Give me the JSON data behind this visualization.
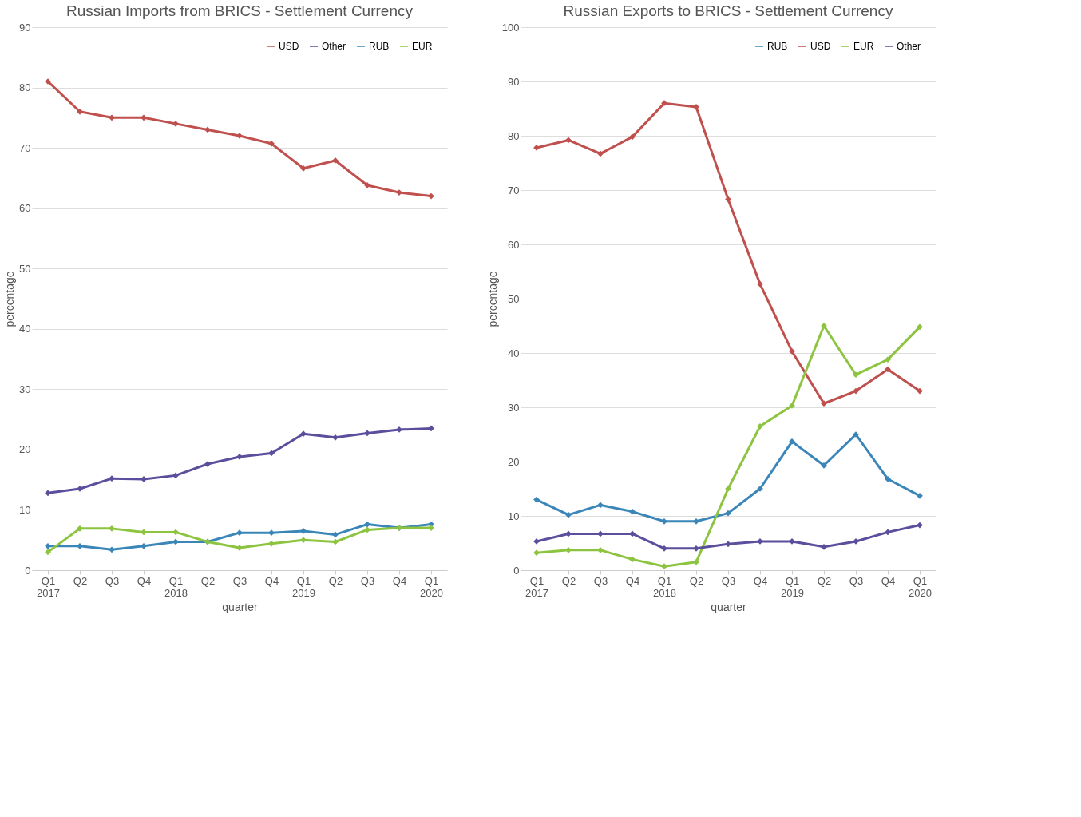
{
  "chart_data": [
    {
      "type": "line",
      "title": "Russian Imports from BRICS - Settlement Currency",
      "xlabel": "quarter",
      "ylabel": "percentage",
      "categories": [
        "Q1 2017",
        "Q2",
        "Q3",
        "Q4",
        "Q1 2018",
        "Q2",
        "Q3",
        "Q4",
        "Q1 2019",
        "Q2",
        "Q3",
        "Q4",
        "Q1 2020"
      ],
      "series": [
        {
          "name": "USD",
          "color": "#c0504d",
          "values": [
            81,
            76,
            75,
            75,
            74,
            73,
            72,
            70.7,
            66.6,
            67.9,
            63.8,
            62.6,
            62
          ]
        },
        {
          "name": "Other",
          "color": "#5b4e9c",
          "values": [
            12.8,
            13.5,
            15.2,
            15.1,
            15.7,
            17.6,
            18.8,
            19.4,
            22.6,
            22,
            22.7,
            23.3,
            23.5
          ]
        },
        {
          "name": "RUB",
          "color": "#3a86b8",
          "values": [
            4,
            4,
            3.4,
            4,
            4.7,
            4.7,
            6.2,
            6.2,
            6.5,
            5.9,
            7.6,
            7,
            7.6
          ]
        },
        {
          "name": "EUR",
          "color": "#8cc43f",
          "values": [
            3,
            6.9,
            6.9,
            6.3,
            6.3,
            4.7,
            3.7,
            4.4,
            5,
            4.7,
            6.7,
            7,
            7
          ]
        }
      ],
      "ylim": [
        0,
        90
      ],
      "yticks": [
        0,
        10,
        20,
        30,
        40,
        50,
        60,
        70,
        80,
        90
      ],
      "grid": "y",
      "legend": "top right",
      "marker": "diamond",
      "line_style": "solid"
    },
    {
      "type": "line",
      "title": "Russian Exports to BRICS - Settlement Currency",
      "xlabel": "quarter",
      "ylabel": "percentage",
      "categories": [
        "Q1 2017",
        "Q2",
        "Q3",
        "Q4",
        "Q1 2018",
        "Q2",
        "Q3",
        "Q4",
        "Q1 2019",
        "Q2",
        "Q3",
        "Q4",
        "Q1 2020"
      ],
      "series": [
        {
          "name": "RUB",
          "color": "#3a86b8",
          "values": [
            13,
            10.2,
            12,
            10.8,
            9,
            9,
            10.5,
            15,
            23.7,
            19.3,
            25,
            16.8,
            13.7
          ]
        },
        {
          "name": "USD",
          "color": "#c0504d",
          "values": [
            77.8,
            79.2,
            76.7,
            79.8,
            86,
            85.3,
            68.3,
            52.7,
            40.3,
            30.7,
            33,
            37,
            33
          ]
        },
        {
          "name": "EUR",
          "color": "#8cc43f",
          "values": [
            3.2,
            3.7,
            3.7,
            2,
            0.7,
            1.5,
            15,
            26.5,
            30.3,
            45,
            36,
            38.8,
            44.8
          ]
        },
        {
          "name": "Other",
          "color": "#5b4e9c",
          "values": [
            5.3,
            6.7,
            6.7,
            6.7,
            4,
            4,
            4.8,
            5.3,
            5.3,
            4.3,
            5.3,
            7,
            8.3
          ]
        }
      ],
      "ylim": [
        0,
        100
      ],
      "yticks": [
        0,
        10,
        20,
        30,
        40,
        50,
        60,
        70,
        80,
        90,
        100
      ],
      "grid": "y",
      "legend": "top right",
      "marker": "diamond",
      "line_style": "solid"
    }
  ]
}
